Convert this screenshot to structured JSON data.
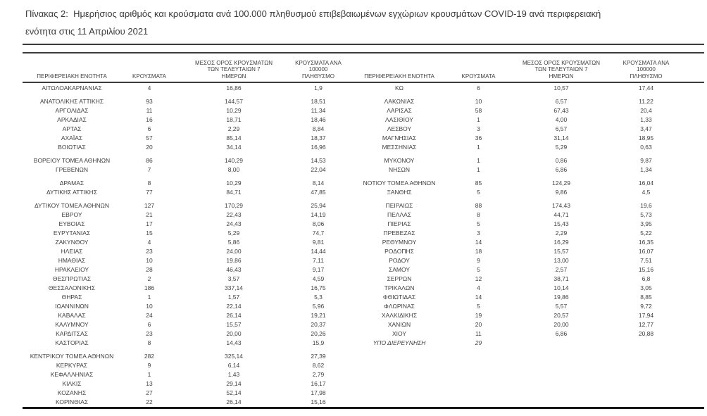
{
  "caption": {
    "line1": "Πίνακας 2:  Ημερήσιος αριθμός και κρούσματα ανά 100.000 πληθυσμού επιβεβαιωμένων εγχώριων κρουσμάτων COVID-19 ανά περιφερειακή",
    "line2": "ενότητα στις 11 Απριλίου 2021"
  },
  "colors": {
    "text": "#3f3f3f",
    "rule": "#3c3c3c",
    "bottom_rule": "#151515"
  },
  "table": {
    "headers": {
      "region": "ΠΕΡΙΦΕΡΕΙΑΚΗ ΕΝΟΤΗΤΑ",
      "cases": "ΚΡΟΥΣΜΑΤΑ",
      "avg7": "ΜΕΣΟΣ ΟΡΟΣ ΚΡΟΥΣΜΑΤΩΝ\nΤΩΝ ΤΕΛΕΥΤΑΙΩΝ 7\nΗΜΕΡΩΝ",
      "per100k": "ΚΡΟΥΣΜΑΤΑ ΑΝΑ 100000\nΠΛΗΘΥΣΜΟ"
    },
    "rows": [
      {
        "left": [
          "ΑΙΤΩΛΟΑΚΑΡΝΑΝΙΑΣ",
          "4",
          "16,86",
          "1,9"
        ],
        "right": [
          "ΚΩ",
          "6",
          "10,57",
          "17,44"
        ]
      },
      {
        "spacer": true
      },
      {
        "left": [
          "ΑΝΑΤΟΛΙΚΗΣ ΑΤΤΙΚΗΣ",
          "93",
          "144,57",
          "18,51"
        ],
        "right": [
          "ΛΑΚΩΝΙΑΣ",
          "10",
          "6,57",
          "11,22"
        ]
      },
      {
        "left": [
          "ΑΡΓΟΛΙΔΑΣ",
          "11",
          "10,29",
          "11,34"
        ],
        "right": [
          "ΛΑΡΙΣΑΣ",
          "58",
          "67,43",
          "20,4"
        ]
      },
      {
        "left": [
          "ΑΡΚΑΔΙΑΣ",
          "16",
          "18,71",
          "18,46"
        ],
        "right": [
          "ΛΑΣΙΘΙΟΥ",
          "1",
          "4,00",
          "1,33"
        ]
      },
      {
        "left": [
          "ΑΡΤΑΣ",
          "6",
          "2,29",
          "8,84"
        ],
        "right": [
          "ΛΕΣΒΟΥ",
          "3",
          "6,57",
          "3,47"
        ]
      },
      {
        "left": [
          "ΑΧΑΪΑΣ",
          "57",
          "85,14",
          "18,37"
        ],
        "right": [
          "ΜΑΓΝΗΣΙΑΣ",
          "36",
          "31,14",
          "18,95"
        ]
      },
      {
        "left": [
          "ΒΟΙΩΤΙΑΣ",
          "20",
          "34,14",
          "16,96"
        ],
        "right": [
          "ΜΕΣΣΗΝΙΑΣ",
          "1",
          "5,29",
          "0,63"
        ]
      },
      {
        "spacer": true
      },
      {
        "left": [
          "ΒΟΡΕΙΟΥ ΤΟΜΕΑ ΑΘΗΝΩΝ",
          "86",
          "140,29",
          "14,53"
        ],
        "right": [
          "ΜΥΚΟΝΟΥ",
          "1",
          "0,86",
          "9,87"
        ]
      },
      {
        "left": [
          "ΓΡΕΒΕΝΩΝ",
          "7",
          "8,00",
          "22,04"
        ],
        "right": [
          "ΝΗΣΩΝ",
          "1",
          "6,86",
          "1,34"
        ]
      },
      {
        "spacer": true
      },
      {
        "left": [
          "ΔΡΑΜΑΣ",
          "8",
          "10,29",
          "8,14"
        ],
        "right": [
          "ΝΟΤΙΟΥ ΤΟΜΕΑ ΑΘΗΝΩΝ",
          "85",
          "124,29",
          "16,04"
        ]
      },
      {
        "left": [
          "ΔΥΤΙΚΗΣ ΑΤΤΙΚΗΣ",
          "77",
          "84,71",
          "47,85"
        ],
        "right": [
          "ΞΑΝΘΗΣ",
          "5",
          "9,86",
          "4,5"
        ]
      },
      {
        "spacer": true
      },
      {
        "left": [
          "ΔΥΤΙΚΟΥ ΤΟΜΕΑ ΑΘΗΝΩΝ",
          "127",
          "170,29",
          "25,94"
        ],
        "right": [
          "ΠΕΙΡΑΙΩΣ",
          "88",
          "174,43",
          "19,6"
        ]
      },
      {
        "left": [
          "ΕΒΡΟΥ",
          "21",
          "22,43",
          "14,19"
        ],
        "right": [
          "ΠΕΛΛΑΣ",
          "8",
          "44,71",
          "5,73"
        ]
      },
      {
        "left": [
          "ΕΥΒΟΙΑΣ",
          "17",
          "24,43",
          "8,06"
        ],
        "right": [
          "ΠΙΕΡΙΑΣ",
          "5",
          "15,43",
          "3,95"
        ]
      },
      {
        "left": [
          "ΕΥΡΥΤΑΝΙΑΣ",
          "15",
          "5,29",
          "74,7"
        ],
        "right": [
          "ΠΡΕΒΕΖΑΣ",
          "3",
          "2,29",
          "5,22"
        ]
      },
      {
        "left": [
          "ΖΑΚΥΝΘΟΥ",
          "4",
          "5,86",
          "9,81"
        ],
        "right": [
          "ΡΕΘΥΜΝΟΥ",
          "14",
          "16,29",
          "16,35"
        ]
      },
      {
        "left": [
          "ΗΛΕΙΑΣ",
          "23",
          "24,00",
          "14,44"
        ],
        "right": [
          "ΡΟΔΟΠΗΣ",
          "18",
          "15,57",
          "16,07"
        ]
      },
      {
        "left": [
          "ΗΜΑΘΙΑΣ",
          "10",
          "19,86",
          "7,11"
        ],
        "right": [
          "ΡΟΔΟΥ",
          "9",
          "13,00",
          "7,51"
        ]
      },
      {
        "left": [
          "ΗΡΑΚΛΕΙΟΥ",
          "28",
          "46,43",
          "9,17"
        ],
        "right": [
          "ΣΑΜΟΥ",
          "5",
          "2,57",
          "15,16"
        ]
      },
      {
        "left": [
          "ΘΕΣΠΡΩΤΙΑΣ",
          "2",
          "3,57",
          "4,59"
        ],
        "right": [
          "ΣΕΡΡΩΝ",
          "12",
          "38,71",
          "6,8"
        ]
      },
      {
        "left": [
          "ΘΕΣΣΑΛΟΝΙΚΗΣ",
          "186",
          "337,14",
          "16,75"
        ],
        "right": [
          "ΤΡΙΚΑΛΩΝ",
          "4",
          "10,14",
          "3,05"
        ]
      },
      {
        "left": [
          "ΘΗΡΑΣ",
          "1",
          "1,57",
          "5,3"
        ],
        "right": [
          "ΦΘΙΩΤΙΔΑΣ",
          "14",
          "19,86",
          "8,85"
        ]
      },
      {
        "left": [
          "ΙΩΑΝΝΙΝΩΝ",
          "10",
          "22,14",
          "5,96"
        ],
        "right": [
          "ΦΛΩΡΙΝΑΣ",
          "5",
          "5,57",
          "9,72"
        ]
      },
      {
        "left": [
          "ΚΑΒΑΛΑΣ",
          "24",
          "26,14",
          "19,21"
        ],
        "right": [
          "ΧΑΛΚΙΔΙΚΗΣ",
          "19",
          "20,57",
          "17,94"
        ]
      },
      {
        "left": [
          "ΚΑΛΥΜΝΟΥ",
          "6",
          "15,57",
          "20,37"
        ],
        "right": [
          "ΧΑΝΙΩΝ",
          "20",
          "20,00",
          "12,77"
        ]
      },
      {
        "left": [
          "ΚΑΡΔΙΤΣΑΣ",
          "23",
          "20,00",
          "20,26"
        ],
        "right": [
          "ΧΙΟΥ",
          "11",
          "6,86",
          "20,88"
        ]
      },
      {
        "left": [
          "ΚΑΣΤΟΡΙΑΣ",
          "8",
          "14,43",
          "15,9"
        ],
        "right": [
          "ΥΠΟ ΔΙΕΡΕΥΝΗΣΗ",
          "29",
          "",
          ""
        ],
        "right_italic": true
      },
      {
        "spacer": true
      },
      {
        "left": [
          "ΚΕΝΤΡΙΚΟΥ ΤΟΜΕΑ ΑΘΗΝΩΝ",
          "282",
          "325,14",
          "27,39"
        ],
        "right": [
          "",
          "",
          "",
          ""
        ]
      },
      {
        "left": [
          "ΚΕΡΚΥΡΑΣ",
          "9",
          "6,14",
          "8,62"
        ],
        "right": [
          "",
          "",
          "",
          ""
        ]
      },
      {
        "left": [
          "ΚΕΦΑΛΛΗΝΙΑΣ",
          "1",
          "1,43",
          "2,79"
        ],
        "right": [
          "",
          "",
          "",
          ""
        ]
      },
      {
        "left": [
          "ΚΙΛΚΙΣ",
          "13",
          "29,14",
          "16,17"
        ],
        "right": [
          "",
          "",
          "",
          ""
        ]
      },
      {
        "left": [
          "ΚΟΖΑΝΗΣ",
          "27",
          "52,14",
          "17,98"
        ],
        "right": [
          "",
          "",
          "",
          ""
        ]
      },
      {
        "left": [
          "ΚΟΡΙΝΘΙΑΣ",
          "22",
          "26,14",
          "15,16"
        ],
        "right": [
          "",
          "",
          "",
          ""
        ]
      }
    ]
  }
}
